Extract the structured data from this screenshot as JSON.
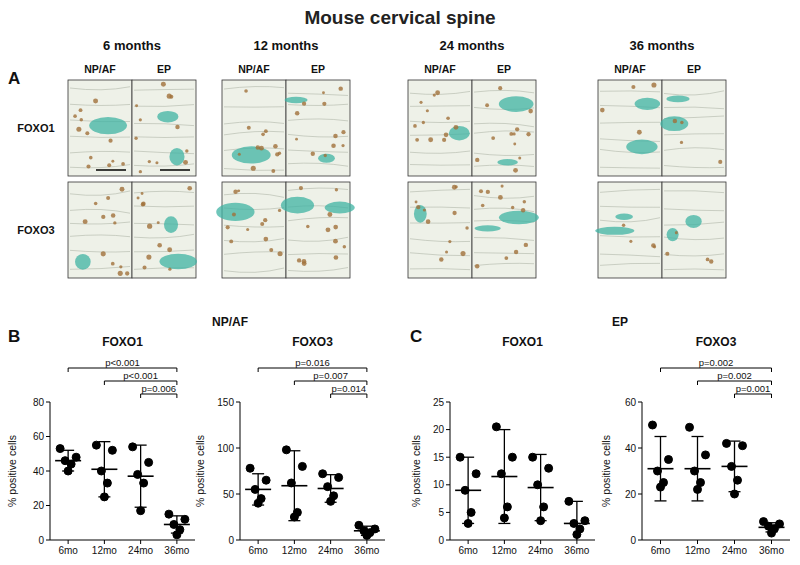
{
  "figure": {
    "title": "Mouse cervical spine",
    "panel_a": {
      "label": "A",
      "ages": [
        "6 months",
        "12 months",
        "24 months",
        "36 months"
      ],
      "compartments": [
        "NP/AF",
        "EP"
      ],
      "rows": [
        "FOXO1",
        "FOXO3"
      ]
    },
    "panels": [
      {
        "label": "B",
        "title": "NP/AF"
      },
      {
        "label": "C",
        "title": "EP"
      }
    ]
  },
  "chart_data": [
    {
      "type": "dot",
      "title": "FOXO1",
      "y_label": "% positive cells",
      "color": "#000000",
      "marker": "circle",
      "categories": [
        "6mo",
        "12mo",
        "24mo",
        "36mo"
      ],
      "values": [
        [
          53,
          48,
          46,
          44,
          40
        ],
        [
          55,
          52,
          40,
          33,
          25
        ],
        [
          54,
          45,
          38,
          33,
          17
        ],
        [
          15,
          12,
          9,
          6,
          3
        ]
      ],
      "mean": [
        46,
        41,
        37,
        9
      ],
      "sd": [
        6,
        16,
        18,
        5
      ],
      "ylim": [
        0,
        80
      ],
      "yticks": [
        0,
        20,
        40,
        60,
        80
      ],
      "comparisons": [
        {
          "from": 0,
          "to": 3,
          "label": "p<0.001"
        },
        {
          "from": 1,
          "to": 3,
          "label": "p<0.001"
        },
        {
          "from": 2,
          "to": 3,
          "label": "p=0.006"
        }
      ]
    },
    {
      "type": "dot",
      "title": "FOXO3",
      "y_label": "% positive cells",
      "color": "#000000",
      "marker": "circle",
      "categories": [
        "6mo",
        "12mo",
        "24mo",
        "36mo"
      ],
      "values": [
        [
          78,
          65,
          55,
          45,
          40
        ],
        [
          98,
          80,
          62,
          30,
          25
        ],
        [
          72,
          68,
          58,
          48,
          42
        ],
        [
          16,
          12,
          10,
          8,
          5
        ]
      ],
      "mean": [
        55,
        59,
        56,
        10
      ],
      "sd": [
        17,
        38,
        15,
        5
      ],
      "ylim": [
        0,
        150
      ],
      "yticks": [
        0,
        50,
        100,
        150
      ],
      "comparisons": [
        {
          "from": 0,
          "to": 3,
          "label": "p=0.016"
        },
        {
          "from": 1,
          "to": 3,
          "label": "p=0.007"
        },
        {
          "from": 2,
          "to": 3,
          "label": "p=0.014"
        }
      ]
    },
    {
      "type": "dot",
      "title": "FOXO1",
      "y_label": "% positive cells",
      "color": "#000000",
      "marker": "circle",
      "categories": [
        "6mo",
        "12mo",
        "24mo",
        "36mo"
      ],
      "values": [
        [
          15,
          12,
          9,
          5,
          3
        ],
        [
          20.5,
          15,
          12,
          6,
          4
        ],
        [
          15,
          13,
          10,
          6,
          3.5
        ],
        [
          7,
          3.5,
          3,
          2,
          1
        ]
      ],
      "mean": [
        9,
        11.5,
        9.5,
        3
      ],
      "sd": [
        6,
        8.5,
        6,
        4
      ],
      "ylim": [
        0,
        25
      ],
      "yticks": [
        0,
        5,
        10,
        15,
        20,
        25
      ]
    },
    {
      "type": "dot",
      "title": "FOXO3",
      "y_label": "% positive cells",
      "color": "#000000",
      "marker": "circle",
      "categories": [
        "6mo",
        "12mo",
        "24mo",
        "36mo"
      ],
      "values": [
        [
          50,
          35,
          30,
          25,
          23
        ],
        [
          49,
          37,
          30,
          25,
          22
        ],
        [
          42,
          41,
          32,
          26,
          20
        ],
        [
          8,
          7,
          6,
          5,
          3
        ]
      ],
      "mean": [
        31,
        31,
        32,
        5.5
      ],
      "sd": [
        14,
        14,
        11,
        2
      ],
      "ylim": [
        0,
        60
      ],
      "yticks": [
        0,
        20,
        40,
        60
      ],
      "comparisons": [
        {
          "from": 0,
          "to": 3,
          "label": "p=0.002"
        },
        {
          "from": 1,
          "to": 3,
          "label": "p=0.002"
        },
        {
          "from": 2,
          "to": 3,
          "label": "p=0.001"
        }
      ]
    }
  ]
}
